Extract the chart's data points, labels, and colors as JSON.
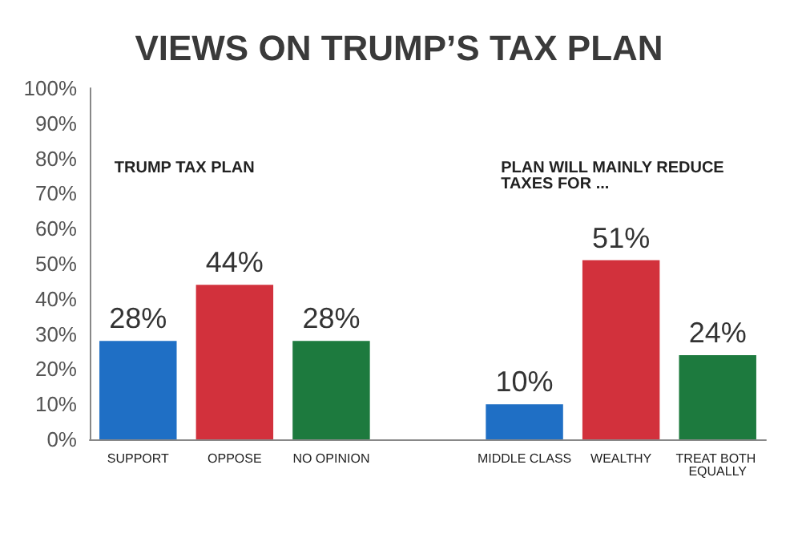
{
  "chart_data": {
    "type": "bar",
    "title": "VIEWS ON TRUMP’S TAX PLAN",
    "categories": [
      "SUPPORT",
      "OPPOSE",
      "NO OPINION",
      null,
      "MIDDLE CLASS",
      "WEALTHY",
      "TREAT BOTH EQUALLY"
    ],
    "values": [
      28,
      44,
      28,
      null,
      10,
      51,
      24
    ],
    "colors": [
      "#1f6fc5",
      "#d2313c",
      "#1d7a3e",
      null,
      "#1f6fc5",
      "#d2313c",
      "#1d7a3e"
    ],
    "value_labels": [
      "28%",
      "44%",
      "28%",
      null,
      "10%",
      "51%",
      "24%"
    ],
    "annotations": [
      "TRUMP TAX PLAN",
      "PLAN WILL MAINLY REDUCE TAXES FOR ..."
    ],
    "ylim": [
      0,
      100
    ],
    "yticks": [
      {
        "value": 0,
        "label": "0%"
      },
      {
        "value": 10,
        "label": "10%"
      },
      {
        "value": 20,
        "label": "20%"
      },
      {
        "value": 30,
        "label": "30%"
      },
      {
        "value": 40,
        "label": "40%"
      },
      {
        "value": 50,
        "label": "50%"
      },
      {
        "value": 60,
        "label": "60%"
      },
      {
        "value": 70,
        "label": "70%"
      },
      {
        "value": 80,
        "label": "80%"
      },
      {
        "value": 90,
        "label": "90%"
      },
      {
        "value": 100,
        "label": "100%"
      }
    ],
    "grid": false
  }
}
